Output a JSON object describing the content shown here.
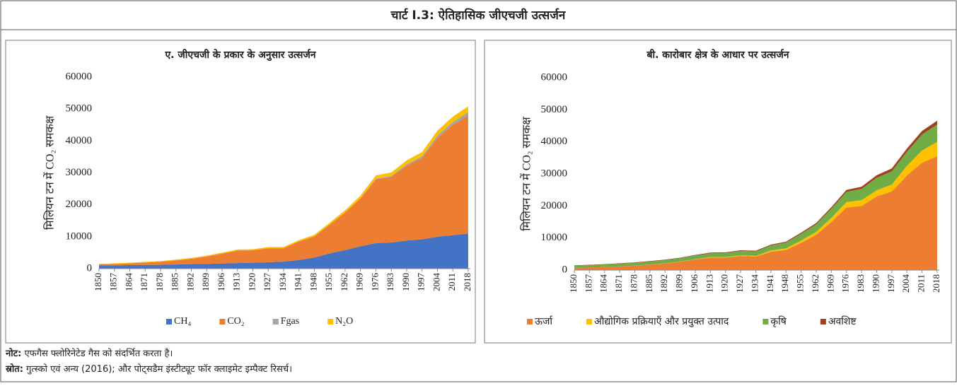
{
  "page_title": "चार्ट I.3: ऐतिहासिक जीएचजी उत्सर्जन",
  "chart_data": [
    {
      "type": "area",
      "stacked": true,
      "title": "ए. जीएचजी के प्रकार के अनुसार उत्सर्जन",
      "y_label": "मिलियन टन में CO₂ समकक्ष",
      "x": [
        1850,
        1857,
        1864,
        1871,
        1878,
        1885,
        1892,
        1899,
        1906,
        1913,
        1920,
        1927,
        1934,
        1941,
        1948,
        1955,
        1962,
        1969,
        1976,
        1983,
        1990,
        1997,
        2004,
        2011,
        2018
      ],
      "xticks": [
        1850,
        1857,
        1864,
        1871,
        1878,
        1885,
        1892,
        1899,
        1906,
        1913,
        1920,
        1927,
        1934,
        1941,
        1948,
        1955,
        1962,
        1969,
        1976,
        1983,
        1990,
        1997,
        2004,
        2011,
        2018
      ],
      "xlim": [
        1850,
        2019
      ],
      "ylim": [
        0,
        60000
      ],
      "yticks": [
        0,
        10000,
        20000,
        30000,
        40000,
        50000,
        60000
      ],
      "series": [
        {
          "name": "CH₄",
          "color": "#4472c4",
          "values": [
            1000,
            1050,
            1100,
            1150,
            1200,
            1300,
            1400,
            1500,
            1600,
            1750,
            1850,
            2000,
            2200,
            2700,
            3500,
            4800,
            5800,
            7000,
            8000,
            8200,
            8800,
            9200,
            10000,
            10500,
            11000
          ]
        },
        {
          "name": "CO₂",
          "color": "#ed7d31",
          "values": [
            300,
            400,
            550,
            750,
            950,
            1300,
            1700,
            2300,
            3100,
            3900,
            3900,
            4400,
            4200,
            5800,
            6600,
            9000,
            11800,
            15000,
            20000,
            20500,
            23500,
            25500,
            31000,
            34500,
            37000
          ]
        },
        {
          "name": "Fgas",
          "color": "#a5a5a5",
          "values": [
            0,
            0,
            0,
            0,
            0,
            0,
            0,
            0,
            0,
            0,
            0,
            0,
            0,
            0,
            0,
            0,
            0,
            50,
            200,
            300,
            400,
            500,
            700,
            900,
            1000
          ]
        },
        {
          "name": "N₂O",
          "color": "#ffc000",
          "values": [
            200,
            210,
            220,
            230,
            240,
            250,
            260,
            280,
            300,
            320,
            330,
            350,
            380,
            450,
            500,
            600,
            700,
            800,
            1000,
            1100,
            1200,
            1300,
            1500,
            1700,
            1800
          ]
        }
      ]
    },
    {
      "type": "area",
      "stacked": true,
      "title": "बी. कारोबार क्षेत्र के आधार पर उत्सर्जन",
      "y_label": "मिलियन टन में CO₂ समकक्ष",
      "x": [
        1850,
        1857,
        1864,
        1871,
        1878,
        1885,
        1892,
        1899,
        1906,
        1913,
        1920,
        1927,
        1934,
        1941,
        1948,
        1955,
        1962,
        1969,
        1976,
        1983,
        1990,
        1997,
        2004,
        2011,
        2018
      ],
      "xticks": [
        1850,
        1857,
        1864,
        1871,
        1878,
        1885,
        1892,
        1899,
        1906,
        1913,
        1920,
        1927,
        1934,
        1941,
        1948,
        1955,
        1962,
        1969,
        1976,
        1983,
        1990,
        1997,
        2004,
        2011,
        2018
      ],
      "xlim": [
        1850,
        2019
      ],
      "ylim": [
        0,
        60000
      ],
      "yticks": [
        0,
        10000,
        20000,
        30000,
        40000,
        50000,
        60000
      ],
      "series": [
        {
          "name": "ऊर्जा",
          "color": "#ed7d31",
          "values": [
            700,
            800,
            950,
            1150,
            1350,
            1700,
            2050,
            2600,
            3300,
            3900,
            3900,
            4400,
            4200,
            5700,
            6300,
            8500,
            11000,
            15000,
            19500,
            20000,
            23000,
            24500,
            29500,
            33500,
            35500
          ]
        },
        {
          "name": "औद्योगिक प्रक्रियाएँ और प्रयुक्त उत्पाद",
          "color": "#ffc000",
          "values": [
            0,
            0,
            0,
            10,
            20,
            30,
            40,
            60,
            100,
            150,
            150,
            200,
            200,
            400,
            450,
            700,
            900,
            1300,
            1700,
            1800,
            1900,
            2200,
            3000,
            3800,
            4500
          ]
        },
        {
          "name": "कृषि",
          "color": "#70ad47",
          "values": [
            700,
            750,
            800,
            850,
            900,
            950,
            1000,
            1050,
            1150,
            1200,
            1300,
            1350,
            1400,
            1600,
            1800,
            2100,
            2400,
            2800,
            3200,
            3500,
            3900,
            4100,
            4400,
            5000,
            5400
          ]
        },
        {
          "name": "अवशिष्ट",
          "color": "#a0401c",
          "values": [
            100,
            100,
            110,
            120,
            130,
            140,
            150,
            160,
            170,
            200,
            200,
            220,
            230,
            250,
            300,
            350,
            400,
            500,
            600,
            700,
            800,
            900,
            1000,
            1100,
            1200
          ]
        }
      ]
    }
  ],
  "notes": [
    {
      "label": "नोट:",
      "text": "एफगैस फ्लोरिनेटेड गैस को संदर्भित करता है।"
    },
    {
      "label": "स्रोत:",
      "text": "गुत्स्को एवं अन्य (2016); और पोट्सडैम इंस्टीट्यूट फॉर क्लाइमेट इम्पैक्ट रिसर्च।"
    }
  ]
}
